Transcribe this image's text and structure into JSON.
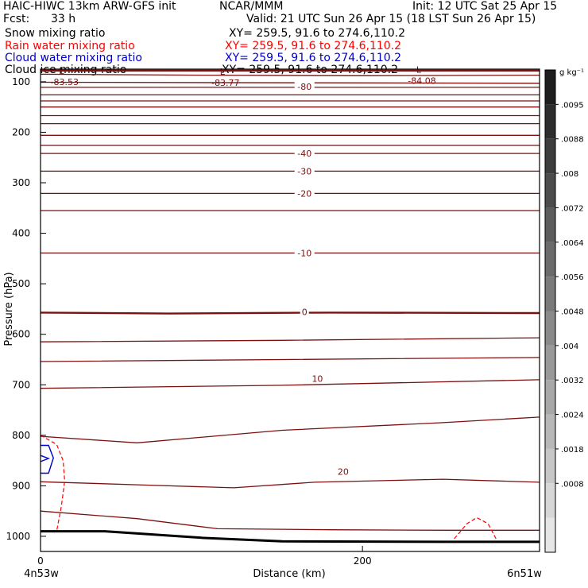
{
  "header": {
    "title_left": "HAIC-HIWC 13km ARW-GFS init",
    "org": "NCAR/MMM",
    "init": "Init: 12 UTC Sat 25 Apr 15",
    "fcst_label": "Fcst:",
    "fcst_value": "33 h",
    "valid": "Valid: 21 UTC Sun 26 Apr 15 (18 LST Sun 26 Apr 15)"
  },
  "fields": [
    {
      "name": "Snow mixing ratio",
      "xy": "XY= 259.5, 91.6 to 274.6,110.2",
      "color": "#000000"
    },
    {
      "name": "Rain water mixing ratio",
      "xy": "XY= 259.5, 91.6 to 274.6,110.2",
      "color": "#ff0000"
    },
    {
      "name": "Cloud water mixing ratio",
      "xy": "XY= 259.5, 91.6 to 274.6,110.2",
      "color": "#0000cc"
    },
    {
      "name": "Cloud ice mixing ratio",
      "xy": "XY= 259.5, 91.6 to 274.6,110.2",
      "color": "#000000"
    }
  ],
  "chart_data": {
    "type": "contour-cross-section",
    "xlabel": "Distance (km)",
    "ylabel": "Pressure (hPa)",
    "x_ticks": [
      0,
      200
    ],
    "x_tick_labels": [
      "0",
      "200"
    ],
    "xlim": [
      0,
      310
    ],
    "ylim": [
      1030,
      75
    ],
    "y_ticks": [
      100,
      200,
      300,
      400,
      500,
      600,
      700,
      800,
      900,
      1000
    ],
    "y_tick_labels": [
      "100",
      "200",
      "300",
      "400",
      "500",
      "600",
      "700",
      "800",
      "900",
      "1000"
    ],
    "x_end_labels": {
      "left": "4n53w",
      "right": "6n51w"
    },
    "temperature_contours": {
      "color": "#7a1010",
      "labels": [
        {
          "value": "-80",
          "x": 164,
          "p": 110
        },
        {
          "value": "-40",
          "x": 164,
          "p": 242
        },
        {
          "value": "-30",
          "x": 164,
          "p": 277
        },
        {
          "value": "-20",
          "x": 164,
          "p": 321
        },
        {
          "value": "-10",
          "x": 164,
          "p": 439
        },
        {
          "value": "0",
          "x": 164,
          "p": 556
        },
        {
          "value": "10",
          "x": 172,
          "p": 688
        },
        {
          "value": "20",
          "x": 188,
          "p": 872
        }
      ],
      "lines": [
        {
          "pts": [
            [
              0,
              77
            ],
            [
              310,
              77
            ]
          ]
        },
        {
          "pts": [
            [
              0,
              79
            ],
            [
              310,
              79
            ]
          ]
        },
        {
          "pts": [
            [
              0,
              85
            ],
            [
              100,
              87
            ],
            [
              200,
              88
            ],
            [
              310,
              87
            ]
          ]
        },
        {
          "pts": [
            [
              0,
              101
            ],
            [
              310,
              103
            ]
          ]
        },
        {
          "pts": [
            [
              0,
              111
            ],
            [
              310,
              111
            ]
          ]
        },
        {
          "pts": [
            [
              0,
              126
            ],
            [
              310,
              126
            ]
          ]
        },
        {
          "pts": [
            [
              0,
              138
            ],
            [
              310,
              138
            ]
          ]
        },
        {
          "pts": [
            [
              0,
              150
            ],
            [
              310,
              150
            ]
          ]
        },
        {
          "pts": [
            [
              0,
              167
            ],
            [
              310,
              167
            ]
          ]
        },
        {
          "pts": [
            [
              0,
              183
            ],
            [
              310,
              183
            ]
          ]
        },
        {
          "pts": [
            [
              0,
              206
            ],
            [
              310,
              206
            ]
          ]
        },
        {
          "pts": [
            [
              0,
              226
            ],
            [
              310,
              226
            ]
          ]
        },
        {
          "pts": [
            [
              0,
              242
            ],
            [
              310,
              242
            ]
          ]
        },
        {
          "pts": [
            [
              0,
              277
            ],
            [
              310,
              277
            ]
          ]
        },
        {
          "pts": [
            [
              0,
              321
            ],
            [
              310,
              321
            ]
          ]
        },
        {
          "pts": [
            [
              0,
              355
            ],
            [
              310,
              355
            ]
          ]
        },
        {
          "pts": [
            [
              0,
              439
            ],
            [
              310,
              439
            ]
          ]
        },
        {
          "pts": [
            [
              0,
              557
            ],
            [
              80,
              559
            ],
            [
              180,
              557
            ],
            [
              310,
              558
            ]
          ],
          "bold": true
        },
        {
          "pts": [
            [
              0,
              615
            ],
            [
              150,
              612
            ],
            [
              310,
              607
            ]
          ]
        },
        {
          "pts": [
            [
              0,
              654
            ],
            [
              150,
              650
            ],
            [
              310,
              646
            ]
          ]
        },
        {
          "pts": [
            [
              0,
              707
            ],
            [
              150,
              701
            ],
            [
              310,
              690
            ]
          ]
        },
        {
          "pts": [
            [
              0,
              802
            ],
            [
              60,
              815
            ],
            [
              150,
              790
            ],
            [
              250,
              775
            ],
            [
              310,
              764
            ]
          ]
        },
        {
          "pts": [
            [
              0,
              892
            ],
            [
              60,
              898
            ],
            [
              120,
              904
            ],
            [
              170,
              893
            ],
            [
              250,
              887
            ],
            [
              310,
              893
            ]
          ]
        },
        {
          "pts": [
            [
              0,
              950
            ],
            [
              60,
              965
            ],
            [
              110,
              985
            ],
            [
              180,
              987
            ],
            [
              250,
              988
            ],
            [
              310,
              988
            ]
          ]
        }
      ]
    },
    "low_markers": [
      {
        "letter": "L",
        "value": "-83.53",
        "x": 10,
        "p": 91
      },
      {
        "letter": "L",
        "value": "-83.77",
        "x": 110,
        "p": 92
      },
      {
        "letter": "L",
        "value": "-84.08",
        "x": 232,
        "p": 88
      }
    ],
    "terrain": {
      "pts": [
        [
          0,
          990
        ],
        [
          40,
          990
        ],
        [
          100,
          1003
        ],
        [
          150,
          1010
        ],
        [
          250,
          1011
        ],
        [
          310,
          1011
        ]
      ]
    },
    "rain_contours": {
      "color": "#ff0000",
      "lines": [
        {
          "pts": [
            [
              0,
              800
            ],
            [
              10,
              818
            ],
            [
              14,
              850
            ],
            [
              15,
              890
            ],
            [
              13,
              940
            ],
            [
              10,
              990
            ]
          ]
        },
        {
          "pts": [
            [
              257,
              1005
            ],
            [
              265,
              975
            ],
            [
              271,
              963
            ],
            [
              278,
              975
            ],
            [
              283,
              1005
            ]
          ]
        }
      ]
    },
    "cloud_water_contours": {
      "color": "#0000cc",
      "lines": [
        {
          "pts": [
            [
              0,
              820
            ],
            [
              5,
              820
            ],
            [
              8,
              845
            ],
            [
              5,
              875
            ],
            [
              0,
              875
            ]
          ]
        },
        {
          "pts": [
            [
              0,
              840
            ],
            [
              5,
              846
            ],
            [
              0,
              852
            ]
          ]
        }
      ]
    },
    "colorbar": {
      "unit": "g kg⁻¹",
      "labels": [
        ".0095",
        ".0088",
        ".008",
        ".0072",
        ".0064",
        ".0056",
        ".0048",
        ".004",
        ".0032",
        ".0024",
        ".0018",
        ".0008"
      ]
    }
  }
}
